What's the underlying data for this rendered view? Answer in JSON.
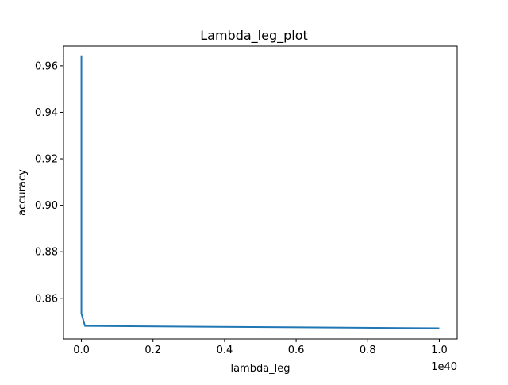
{
  "chart_data": {
    "type": "line",
    "title": "Lambda_leg_plot",
    "xlabel": "lambda_leg",
    "ylabel": "accuracy",
    "x_offset_text": "1e40",
    "xlim": [
      -0.05,
      1.05
    ],
    "ylim": [
      0.8425,
      0.9685
    ],
    "x_ticks": [
      0.0,
      0.2,
      0.4,
      0.6,
      0.8,
      1.0
    ],
    "x_tick_labels": [
      "0.0",
      "0.2",
      "0.4",
      "0.6",
      "0.8",
      "1.0"
    ],
    "y_ticks": [
      0.86,
      0.88,
      0.9,
      0.92,
      0.94,
      0.96
    ],
    "y_tick_labels": [
      "0.86",
      "0.88",
      "0.90",
      "0.92",
      "0.94",
      "0.96"
    ],
    "grid": false,
    "series": [
      {
        "color": "#1f77b4",
        "x": [
          0.0,
          0.0,
          0.0,
          0.01,
          1.0
        ],
        "y": [
          0.9645,
          0.8535,
          0.8535,
          0.8481,
          0.8471
        ]
      }
    ]
  }
}
